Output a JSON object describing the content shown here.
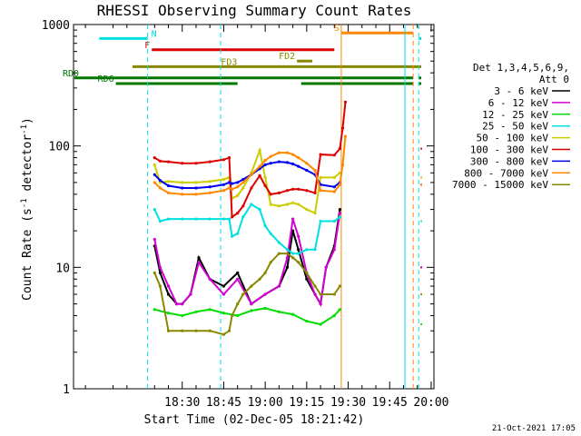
{
  "chart_data": {
    "type": "line",
    "title": "RHESSI Observing Summary Count Rates",
    "xlabel": "Start Time (02-Dec-05 18:21:42)",
    "ylabel_main": "Count Rate (s",
    "ylabel_exp1": "-1",
    "ylabel_mid": " detector",
    "ylabel_exp2": "-1",
    "ylabel_end": ")",
    "yscale": "log",
    "ylim": [
      1,
      1000
    ],
    "xlim_minutes": [
      -9.3,
      121
    ],
    "x_ticks": [
      {
        "t": 30,
        "label": "18:30"
      },
      {
        "t": 45,
        "label": "18:45"
      },
      {
        "t": 60,
        "label": "19:00"
      },
      {
        "t": 75,
        "label": "19:15"
      },
      {
        "t": 90,
        "label": "19:30"
      },
      {
        "t": 105,
        "label": "19:45"
      },
      {
        "t": 120,
        "label": "20:00"
      }
    ],
    "y_ticks": [
      {
        "v": 1,
        "label": "1"
      },
      {
        "v": 10,
        "label": "10"
      },
      {
        "v": 100,
        "label": "100"
      },
      {
        "v": 1000,
        "label": "1000"
      }
    ],
    "legend_header": [
      "Det 1,3,4,5,6,9,",
      "Att 0"
    ],
    "legend_placement": "right",
    "timestamp": "21-Oct-2021 17:05",
    "gaps_minutes": [
      [
        87.5,
        115.5
      ]
    ],
    "series": [
      {
        "name": "3 - 6 keV",
        "color": "#000000",
        "t": [
          20,
          22,
          25,
          28,
          30,
          33,
          36,
          40,
          45,
          50,
          55,
          60,
          65,
          68,
          70,
          72,
          75,
          78,
          80,
          82,
          85,
          87
        ],
        "values": [
          15,
          9,
          6,
          5,
          5,
          6,
          12,
          8,
          7,
          9,
          5,
          6,
          7,
          10,
          20,
          14,
          8,
          6,
          5,
          10,
          15,
          30
        ]
      },
      {
        "name": "6 - 12 keV",
        "color": "#d400d4",
        "t": [
          20,
          22,
          25,
          28,
          30,
          33,
          36,
          40,
          45,
          50,
          55,
          60,
          65,
          68,
          70,
          72,
          75,
          78,
          80,
          82,
          85,
          87
        ],
        "values": [
          17,
          10,
          7,
          5,
          5,
          6,
          11,
          8,
          6,
          8,
          5,
          6,
          7,
          12,
          25,
          18,
          9,
          6,
          5,
          10,
          14,
          28
        ]
      },
      {
        "name": "12 - 25 keV",
        "color": "#00dd00",
        "t": [
          20,
          25,
          30,
          35,
          40,
          45,
          50,
          55,
          60,
          65,
          70,
          75,
          80,
          85,
          87
        ],
        "values": [
          4.5,
          4.2,
          4.0,
          4.3,
          4.5,
          4.2,
          4.0,
          4.4,
          4.6,
          4.3,
          4.1,
          3.6,
          3.4,
          4.0,
          4.5
        ]
      },
      {
        "name": "25 - 50 keV",
        "color": "#00e0e0",
        "t": [
          20,
          22,
          25,
          30,
          35,
          40,
          45,
          47,
          48,
          50,
          52,
          55,
          58,
          60,
          62,
          65,
          68,
          70,
          72,
          75,
          78,
          80,
          85,
          87
        ],
        "values": [
          30,
          24,
          25,
          25,
          25,
          25,
          25,
          25,
          18,
          19,
          26,
          33,
          30,
          22,
          19,
          16,
          14,
          13,
          13,
          14,
          14,
          24,
          24,
          26
        ]
      },
      {
        "name": "50 - 100 keV",
        "color": "#cccc00",
        "t": [
          20,
          22,
          25,
          30,
          35,
          40,
          45,
          47,
          48,
          50,
          52,
          55,
          58,
          60,
          62,
          65,
          68,
          70,
          72,
          75,
          78,
          80,
          85,
          87
        ],
        "values": [
          70,
          50,
          51,
          50,
          50,
          51,
          53,
          55,
          37,
          39,
          45,
          60,
          92,
          55,
          33,
          32,
          33,
          34,
          33,
          30,
          28,
          55,
          55,
          60
        ]
      },
      {
        "name": "100 - 300 keV",
        "color": "#dd0000",
        "t": [
          20,
          22,
          25,
          30,
          35,
          40,
          45,
          47,
          48,
          50,
          52,
          55,
          58,
          60,
          62,
          65,
          68,
          70,
          72,
          75,
          78,
          80,
          85,
          87,
          88,
          89
        ],
        "values": [
          80,
          75,
          74,
          72,
          72,
          74,
          77,
          80,
          26,
          28,
          32,
          45,
          57,
          47,
          40,
          41,
          43,
          44,
          44,
          43,
          41,
          85,
          84,
          95,
          140,
          230
        ]
      },
      {
        "name": "300 - 800 keV",
        "color": "#0000ee",
        "t": [
          20,
          22,
          25,
          30,
          35,
          40,
          45,
          47,
          48,
          50,
          52,
          55,
          58,
          60,
          62,
          65,
          68,
          70,
          72,
          75,
          78,
          80,
          85,
          87
        ],
        "values": [
          58,
          52,
          47,
          45,
          45,
          46,
          48,
          50,
          49,
          50,
          53,
          58,
          65,
          70,
          72,
          74,
          73,
          71,
          68,
          63,
          58,
          48,
          46,
          50
        ]
      },
      {
        "name": "800 - 7000 keV",
        "color": "#ff8800",
        "t": [
          20,
          22,
          25,
          30,
          35,
          40,
          45,
          47,
          48,
          50,
          52,
          55,
          58,
          60,
          62,
          65,
          68,
          70,
          72,
          75,
          78,
          80,
          85,
          87,
          88,
          89
        ],
        "values": [
          50,
          45,
          41,
          40,
          40,
          41,
          43,
          45,
          44,
          46,
          50,
          58,
          68,
          76,
          82,
          88,
          88,
          85,
          80,
          72,
          63,
          43,
          42,
          48,
          70,
          120
        ]
      },
      {
        "name": "7000 - 15000 keV",
        "color": "#888800",
        "t": [
          20,
          22,
          25,
          30,
          35,
          40,
          45,
          47,
          48,
          50,
          52,
          55,
          58,
          60,
          62,
          65,
          68,
          70,
          72,
          75,
          78,
          80,
          85,
          87
        ],
        "values": [
          9,
          7,
          3,
          3,
          3,
          3,
          2.8,
          3,
          4,
          5,
          6,
          7,
          8,
          9,
          11,
          13,
          13,
          12,
          11,
          9,
          7,
          6,
          6,
          7
        ]
      }
    ],
    "vertical_markers": [
      {
        "t": 17.5,
        "color": "#00e0e0",
        "style": "dashed"
      },
      {
        "t": 43.9,
        "color": "#00e0e0",
        "style": "dashed"
      },
      {
        "t": 87.5,
        "color": "#ff8800",
        "style": "solid"
      },
      {
        "t": 110.5,
        "color": "#00e0e0",
        "style": "solid"
      },
      {
        "t": 113.5,
        "color": "#ff8800",
        "style": "dashed"
      },
      {
        "t": 115.5,
        "color": "#00e0e0",
        "style": "dashed"
      },
      {
        "t": 123.5,
        "color": "#00e0e0",
        "style": "dashed"
      }
    ],
    "flag_bars": [
      {
        "label": "N",
        "color": "#00e0e0",
        "level": 9,
        "segments": [
          [
            0,
            17.5
          ],
          [
            115.5,
            123
          ]
        ]
      },
      {
        "label": "S",
        "color": "#ff8800",
        "level": 10,
        "segments": [
          [
            87.5,
            113.5
          ]
        ]
      },
      {
        "label": "F",
        "color": "#dd0000",
        "level": 7,
        "segments": [
          [
            19,
            85
          ]
        ]
      },
      {
        "label": "FD2",
        "color": "#888800",
        "level": 5,
        "segments": [
          [
            71.5,
            77
          ]
        ]
      },
      {
        "label": "FD3",
        "color": "#888800",
        "level": 4,
        "segments": [
          [
            12,
            123
          ]
        ]
      },
      {
        "label": "RD0",
        "color": "#007700",
        "level": 2,
        "segments": [
          [
            -9,
            113.5
          ],
          [
            115.5,
            123
          ]
        ]
      },
      {
        "label": "RD6",
        "color": "#007700",
        "level": 1,
        "segments": [
          [
            6,
            50
          ],
          [
            73,
            113.5
          ],
          [
            115.5,
            123
          ]
        ]
      }
    ]
  }
}
